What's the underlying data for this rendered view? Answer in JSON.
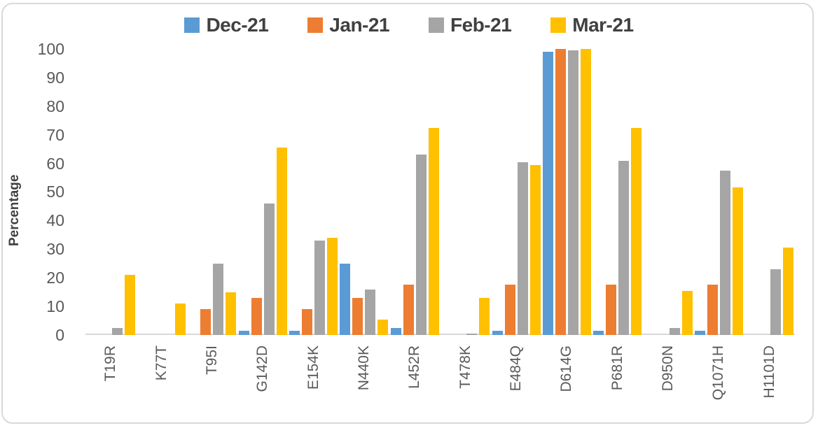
{
  "y_axis": {
    "title": "Percentage",
    "ticks": [
      "100",
      "90",
      "80",
      "70",
      "60",
      "50",
      "40",
      "30",
      "20",
      "10",
      "0"
    ]
  },
  "colors": {
    "axis_line": "#d9d9d9",
    "tick_text": "#595959",
    "label_text": "#404040",
    "frame_border": "#d9d9d9",
    "series_blue": "#5b9bd5",
    "series_orange": "#ed7d31",
    "series_gray": "#a5a5a5",
    "series_yellow": "#ffc000"
  },
  "chart_data": {
    "type": "bar",
    "title": "",
    "xlabel": "",
    "ylabel": "Percentage",
    "ylim": [
      0,
      100
    ],
    "y_tick_step": 10,
    "grid": false,
    "legend_position": "top-center",
    "categories": [
      "T19R",
      "K77T",
      "T95I",
      "G142D",
      "E154K",
      "N440K",
      "L452R",
      "T478K",
      "E484Q",
      "D614G",
      "P681R",
      "D950N",
      "Q1071H",
      "H1101D"
    ],
    "series": [
      {
        "name": "Dec-21",
        "color": "#5b9bd5",
        "values": [
          0,
          0,
          0,
          1.5,
          1.5,
          25,
          2.5,
          0,
          1.5,
          99,
          1.5,
          0,
          1.5,
          0
        ]
      },
      {
        "name": "Jan-21",
        "color": "#ed7d31",
        "values": [
          0,
          0,
          9,
          13,
          9,
          13,
          17.5,
          0,
          17.5,
          100,
          17.5,
          0,
          17.5,
          0
        ]
      },
      {
        "name": "Feb-21",
        "color": "#a5a5a5",
        "values": [
          2.5,
          0,
          25,
          46,
          33,
          16,
          63,
          0.5,
          60.5,
          99.5,
          61,
          2.5,
          57.5,
          23
        ]
      },
      {
        "name": "Mar-21",
        "color": "#ffc000",
        "values": [
          21,
          11,
          15,
          65.5,
          34,
          5.5,
          72.5,
          13,
          59.5,
          100,
          72.5,
          15.5,
          51.5,
          30.5
        ]
      }
    ]
  }
}
